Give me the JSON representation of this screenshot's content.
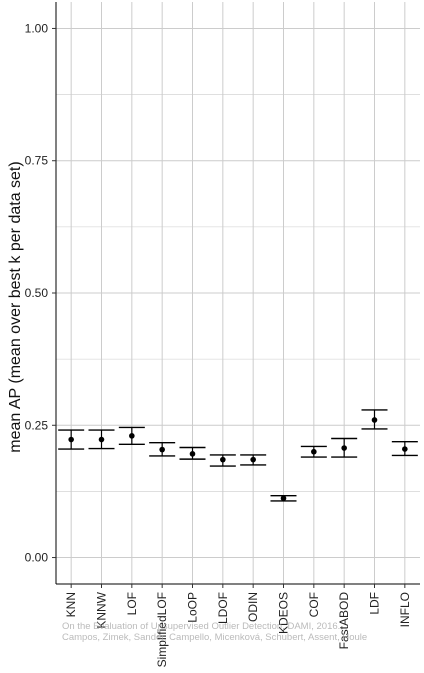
{
  "chart_data": {
    "type": "errorbar",
    "ylabel": "mean AP (mean over best k per data set)",
    "xlabel": "",
    "ylim": [
      -0.05,
      1.05
    ],
    "y_ticks": [
      "0.00",
      "0.25",
      "0.50",
      "0.75",
      "1.00"
    ],
    "y_tick_values": [
      0,
      0.25,
      0.5,
      0.75,
      1.0
    ],
    "grid": true,
    "categories": [
      "KNN",
      "KNNW",
      "LOF",
      "SimplifiedLOF",
      "LoOP",
      "LDOF",
      "ODIN",
      "KDEOS",
      "COF",
      "FastABOD",
      "LDF",
      "INFLO"
    ],
    "mean": [
      0.223,
      0.223,
      0.23,
      0.204,
      0.196,
      0.185,
      0.185,
      0.112,
      0.2,
      0.207,
      0.26,
      0.205
    ],
    "lower": [
      0.205,
      0.206,
      0.214,
      0.192,
      0.186,
      0.173,
      0.175,
      0.107,
      0.19,
      0.19,
      0.243,
      0.193
    ],
    "upper": [
      0.241,
      0.241,
      0.246,
      0.217,
      0.208,
      0.194,
      0.194,
      0.117,
      0.21,
      0.225,
      0.279,
      0.219
    ],
    "colors": {
      "points": "#000000",
      "grid": "#cccccc",
      "axis": "#000000"
    }
  },
  "watermark": {
    "line1": "On the Evaluation of Unsupervised Outlier Detection, DAMI, 2016.",
    "line2": "Campos, Zimek, Sander, Campello, Micenková, Schubert, Assent, Houle"
  }
}
